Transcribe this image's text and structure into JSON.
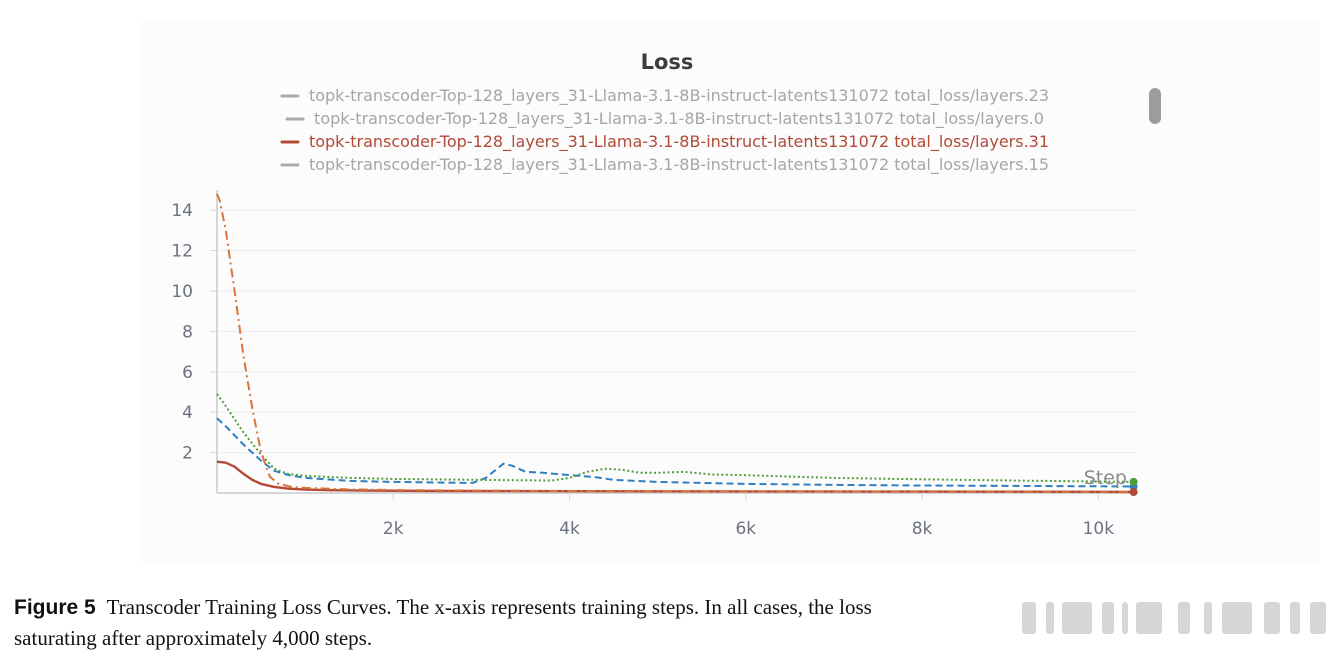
{
  "chart_data": {
    "type": "line",
    "title": "Loss",
    "xlabel": "Step",
    "ylabel": "",
    "xlim": [
      0,
      10450
    ],
    "ylim": [
      0,
      15
    ],
    "x_ticks": [
      2000,
      4000,
      6000,
      8000,
      10000
    ],
    "x_tick_labels": [
      "2k",
      "4k",
      "6k",
      "8k",
      "10k"
    ],
    "y_ticks": [
      2,
      4,
      6,
      8,
      10,
      12,
      14
    ],
    "y_tick_labels": [
      "2",
      "4",
      "6",
      "8",
      "10",
      "12",
      "14"
    ],
    "grid": true,
    "legend_position": "top",
    "series": [
      {
        "name": "topk-transcoder-Top-128_layers_31-Llama-3.1-8B-instruct-latents131072 total_loss/layers.23",
        "color": "#2f7fc1",
        "style": "dashed",
        "active": false,
        "end_marker": true,
        "x": [
          0,
          100,
          300,
          500,
          650,
          800,
          1000,
          1500,
          2000,
          2500,
          2900,
          3050,
          3150,
          3250,
          3350,
          3500,
          3700,
          3900,
          4100,
          4300,
          4500,
          5000,
          6000,
          7000,
          8000,
          9000,
          10000,
          10400
        ],
        "y": [
          3.7,
          3.3,
          2.4,
          1.6,
          1.1,
          0.9,
          0.75,
          0.6,
          0.55,
          0.52,
          0.5,
          0.75,
          1.1,
          1.45,
          1.35,
          1.05,
          1.0,
          0.92,
          0.85,
          0.78,
          0.65,
          0.55,
          0.45,
          0.4,
          0.37,
          0.35,
          0.33,
          0.32
        ]
      },
      {
        "name": "topk-transcoder-Top-128_layers_31-Llama-3.1-8B-instruct-latents131072 total_loss/layers.0",
        "color": "#4f9d3a",
        "style": "dotted",
        "active": false,
        "end_marker": true,
        "x": [
          0,
          100,
          300,
          500,
          650,
          800,
          1000,
          1500,
          2000,
          3000,
          3800,
          4000,
          4200,
          4400,
          4600,
          4800,
          5000,
          5300,
          5600,
          6000,
          7000,
          8000,
          9000,
          10000,
          10400
        ],
        "y": [
          4.9,
          4.3,
          3.0,
          1.9,
          1.2,
          0.95,
          0.85,
          0.75,
          0.7,
          0.65,
          0.62,
          0.75,
          1.05,
          1.2,
          1.15,
          1.0,
          1.0,
          1.05,
          0.92,
          0.88,
          0.75,
          0.68,
          0.62,
          0.57,
          0.55
        ]
      },
      {
        "name": "topk-transcoder-Top-128_layers_31-Llama-3.1-8B-instruct-latents131072 total_loss/layers.31",
        "color": "#b24a36",
        "style": "solid",
        "active": true,
        "end_marker": true,
        "x": [
          0,
          100,
          200,
          300,
          400,
          500,
          650,
          800,
          1000,
          1300,
          1700,
          2500,
          4000,
          6000,
          8000,
          10000,
          10400
        ],
        "y": [
          1.55,
          1.5,
          1.3,
          0.95,
          0.65,
          0.45,
          0.3,
          0.22,
          0.17,
          0.14,
          0.12,
          0.1,
          0.09,
          0.08,
          0.07,
          0.06,
          0.05
        ]
      },
      {
        "name": "topk-transcoder-Top-128_layers_31-Llama-3.1-8B-instruct-latents131072 total_loss/layers.15",
        "color": "#d8743a",
        "style": "dashdot",
        "active": false,
        "end_marker": false,
        "x": [
          0,
          30,
          100,
          200,
          300,
          400,
          500,
          600,
          700,
          850,
          1000,
          1500,
          2000,
          3000,
          4000,
          6000,
          8000,
          10000,
          10400
        ],
        "y": [
          14.8,
          14.5,
          13.0,
          10.0,
          6.8,
          4.2,
          2.0,
          0.8,
          0.45,
          0.3,
          0.25,
          0.18,
          0.15,
          0.12,
          0.1,
          0.08,
          0.07,
          0.06,
          0.05
        ]
      }
    ]
  },
  "caption": {
    "label": "Figure 5",
    "text": "Transcoder Training Loss Curves. The x-axis represents training steps. In all cases, the loss",
    "text2": "saturating after approximately 4,000 steps."
  }
}
